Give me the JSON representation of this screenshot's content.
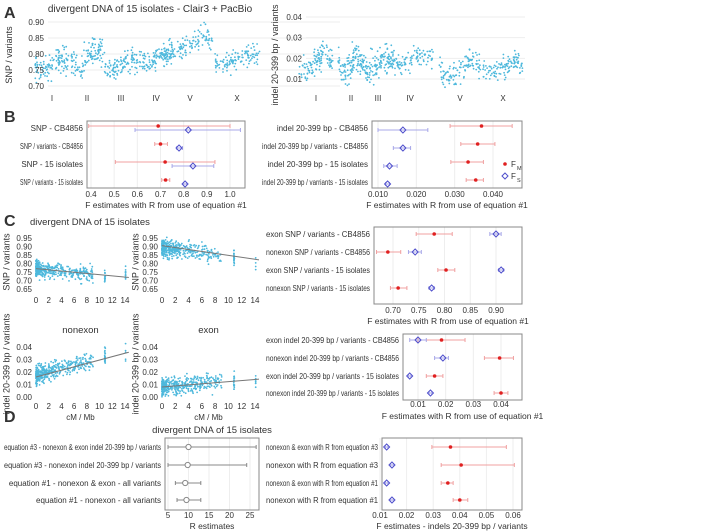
{
  "panel_letters": [
    "A",
    "B",
    "C",
    "D"
  ],
  "chart_data": {
    "A_snp": {
      "type": "scatter",
      "title": "divergent DNA of 15 isolates - Clair3 + PacBio",
      "ylabel": "SNP / variants",
      "categories": [
        "I",
        "II",
        "III",
        "IV",
        "V",
        "X"
      ],
      "yticks": [
        0.7,
        0.75,
        0.8,
        0.85,
        0.9
      ],
      "ylim": [
        0.68,
        0.92
      ],
      "approx_mean": [
        0.765,
        0.79,
        0.765,
        0.785,
        0.83,
        0.785
      ],
      "approx_spread": [
        0.035,
        0.04,
        0.035,
        0.03,
        0.04,
        0.03
      ]
    },
    "A_indel": {
      "type": "scatter",
      "ylabel": "indel 20-399 bp / variants",
      "categories": [
        "I",
        "II",
        "III",
        "IV",
        "V",
        "X"
      ],
      "yticks": [
        0.01,
        0.02,
        0.03,
        0.04
      ],
      "ylim": [
        0.003,
        0.042
      ],
      "approx_mean": [
        0.018,
        0.017,
        0.017,
        0.019,
        0.015,
        0.016
      ],
      "approx_spread": [
        0.007,
        0.007,
        0.007,
        0.005,
        0.006,
        0.005
      ]
    },
    "B_snp": {
      "type": "forest",
      "xlabel": "F estimates with R from use of equation #1",
      "xticks": [
        0.4,
        0.5,
        0.6,
        0.7,
        0.8,
        0.9,
        1.0
      ],
      "ticklabels": [
        "0.4",
        "0.5",
        "0.6",
        "0.7",
        "0.8",
        "0.9",
        "1.0"
      ],
      "rows": [
        {
          "label": "SNP - CB4856",
          "fm": [
            0.69,
            0.39,
            1.0
          ],
          "fs": [
            0.82,
            0.59,
            1.045
          ]
        },
        {
          "label": "SNP / variants - CB4856",
          "fm": [
            0.7,
            0.675,
            0.73
          ],
          "fs": [
            0.78,
            0.77,
            0.795
          ]
        },
        {
          "label": "SNP - 15 isolates",
          "fm": [
            0.72,
            0.505,
            0.935
          ],
          "fs": [
            0.84,
            0.75,
            0.93
          ]
        },
        {
          "label": "SNP / variants - 15 isolates",
          "fm": [
            0.722,
            0.705,
            0.74
          ],
          "fs": [
            0.806,
            0.8,
            0.812
          ]
        }
      ]
    },
    "B_indel": {
      "type": "forest",
      "xlabel": "F estimates with R from use of equation #1",
      "xticks": [
        0.01,
        0.02,
        0.03,
        0.04
      ],
      "ticklabels": [
        "0.010",
        "0.020",
        "0.030",
        "0.040"
      ],
      "legend": [
        "F_M",
        "F_S"
      ],
      "rows": [
        {
          "label": "indel 20-399 bp - CB4856",
          "fm": [
            0.037,
            0.0288,
            0.045
          ],
          "fs": [
            0.0165,
            0.01,
            0.023
          ]
        },
        {
          "label": "indel 20-399 bp / variants - CB4856",
          "fm": [
            0.036,
            0.0316,
            0.0405
          ],
          "fs": [
            0.0165,
            0.014,
            0.0185
          ]
        },
        {
          "label": "indel 20-399 bp - 15 isolates",
          "fm": [
            0.0335,
            0.029,
            0.0375
          ],
          "fs": [
            0.013,
            0.0115,
            0.015
          ]
        },
        {
          "label": "indel 20-399 bp / varriants - 15 isolates",
          "fm": [
            0.0355,
            0.033,
            0.0375
          ],
          "fs": [
            0.0125,
            0.012,
            0.013
          ]
        }
      ]
    },
    "C_scatter": {
      "title": "divergent DNA of 15 isolates",
      "xlabel": "cM / Mb",
      "xticks": [
        0,
        2,
        4,
        6,
        8,
        10,
        12,
        14
      ],
      "plots": [
        {
          "ylabel": "SNP / variants",
          "yticks": [
            0.65,
            0.7,
            0.75,
            0.8,
            0.85,
            0.9,
            0.95
          ],
          "ylim": [
            0.64,
            0.96
          ],
          "trend": [
            0.77,
            0.72
          ],
          "approx_mean": 0.765,
          "approx_spread": 0.045
        },
        {
          "ylabel": "SNP / variants",
          "yticks": [
            0.65,
            0.7,
            0.75,
            0.8,
            0.85,
            0.9,
            0.95
          ],
          "ylim": [
            0.64,
            0.96
          ],
          "trend": [
            0.905,
            0.825
          ],
          "approx_mean": 0.88,
          "approx_spread": 0.05
        },
        {
          "title": "nonexon",
          "ylabel": "indel 20-399 bp / variants",
          "yticks": [
            0.0,
            0.01,
            0.02,
            0.03,
            0.04
          ],
          "ylim": [
            -0.002,
            0.046
          ],
          "trend": [
            0.016,
            0.035
          ],
          "approx_mean": 0.02,
          "approx_spread": 0.007
        },
        {
          "title": "exon",
          "ylabel": "indel 20-399 bp / variants",
          "yticks": [
            0.0,
            0.01,
            0.02,
            0.03,
            0.04
          ],
          "ylim": [
            -0.002,
            0.046
          ],
          "trend": [
            0.008,
            0.014
          ],
          "approx_mean": 0.009,
          "approx_spread": 0.007
        }
      ]
    },
    "C_snp": {
      "type": "forest",
      "xlabel": "F estimates with R from use of equation #1",
      "xticks": [
        0.7,
        0.75,
        0.8,
        0.85,
        0.9
      ],
      "ticklabels": [
        "0.70",
        "0.75",
        "0.80",
        "0.85",
        "0.90"
      ],
      "rows": [
        {
          "label": "exon SNP / variants - CB4856",
          "fm": [
            0.78,
            0.745,
            0.815
          ],
          "fs": [
            0.9,
            0.888,
            0.91
          ]
        },
        {
          "label": "nonexon SNP / variants - CB4856",
          "fm": [
            0.69,
            0.668,
            0.715
          ],
          "fs": [
            0.743,
            0.73,
            0.755
          ]
        },
        {
          "label": "exon SNP / variants - 15 isolates",
          "fm": [
            0.803,
            0.787,
            0.82
          ],
          "fs": [
            0.91,
            0.905,
            0.915
          ]
        },
        {
          "label": "nonexon SNP / variants - 15 isolates",
          "fm": [
            0.71,
            0.695,
            0.727
          ],
          "fs": [
            0.775,
            0.77,
            0.78
          ]
        }
      ]
    },
    "C_indel": {
      "type": "forest",
      "xlabel": "F estimates with R from use of equation #1",
      "xticks": [
        0.01,
        0.02,
        0.03,
        0.04
      ],
      "ticklabels": [
        "0.01",
        "0.02",
        "0.03",
        "0.04"
      ],
      "rows": [
        {
          "label": "exon indel 20-399 bp / variants - CB4856",
          "fm": [
            0.0185,
            0.01,
            0.027
          ],
          "fs": [
            0.01,
            0.007,
            0.013
          ]
        },
        {
          "label": "nonexon indel 20-399 bp / variants - CB4856",
          "fm": [
            0.0395,
            0.034,
            0.0445
          ],
          "fs": [
            0.019,
            0.016,
            0.021
          ]
        },
        {
          "label": "exon indel 20-399 bp / variants - 15 isolates",
          "fm": [
            0.016,
            0.013,
            0.019
          ],
          "fs": [
            0.007,
            0.0065,
            0.0075
          ]
        },
        {
          "label": "nonexon indel 20-399 bp / variants - 15 isolates",
          "fm": [
            0.04,
            0.0375,
            0.0425
          ],
          "fs": [
            0.0145,
            0.014,
            0.015
          ]
        }
      ]
    },
    "D_r": {
      "type": "forest",
      "title": "divergent DNA of 15 isolates",
      "xlabel": "R estimates",
      "xticks": [
        5,
        10,
        15,
        20,
        25
      ],
      "ticklabels": [
        "5",
        "10",
        "15",
        "20",
        "25"
      ],
      "rows": [
        {
          "label": "equation #3 - nonexon & exon indel 20-399 bp / variants",
          "r": [
            10,
            5,
            26.5
          ]
        },
        {
          "label": "equation #3 - nonexon indel 20-399 bp / variants",
          "r": [
            9.8,
            5,
            24.2
          ]
        },
        {
          "label": "equation #1 - nonexon & exon - all variants",
          "r": [
            9.2,
            6.8,
            13
          ]
        },
        {
          "label": "equation #1 - nonexon - all variants",
          "r": [
            9.5,
            7.2,
            13
          ]
        }
      ]
    },
    "D_f": {
      "type": "forest",
      "xlabel": "F estimates - indels 20-399 bp / variants",
      "xticks": [
        0.01,
        0.02,
        0.03,
        0.04,
        0.05,
        0.06
      ],
      "ticklabels": [
        "0.01",
        "0.02",
        "0.03",
        "0.04",
        "0.05",
        "0.06"
      ],
      "rows": [
        {
          "label": "nonexon & exon with R from equation #3",
          "fm": [
            0.0365,
            0.0295,
            0.0575
          ],
          "fs": [
            0.0125,
            0.012,
            0.013
          ]
        },
        {
          "label": "nonexon with R from equation #3",
          "fm": [
            0.0405,
            0.033,
            0.0605
          ],
          "fs": [
            0.0145,
            0.014,
            0.015
          ]
        },
        {
          "label": "nonexon & exon with R from equation #1",
          "fm": [
            0.0355,
            0.033,
            0.0375
          ],
          "fs": [
            0.0125,
            0.012,
            0.013
          ]
        },
        {
          "label": "nonexon with R from equation #1",
          "fm": [
            0.04,
            0.0375,
            0.043
          ],
          "fs": [
            0.0145,
            0.014,
            0.015
          ]
        }
      ]
    }
  },
  "colors": {
    "points": "#4db8dc",
    "fm": "#e02020",
    "fm_bar": "#f0a0a0",
    "fs": "#5050cc",
    "fs_bar": "#a8a8e8",
    "trend": "#777777",
    "r": "#888888"
  }
}
